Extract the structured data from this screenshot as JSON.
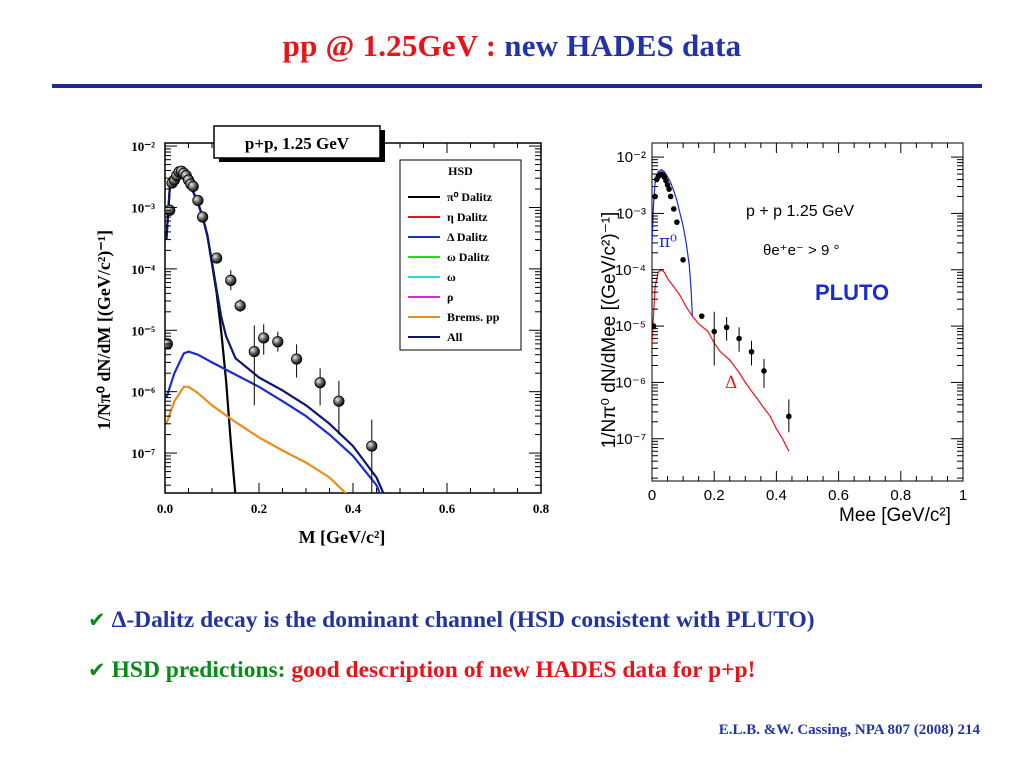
{
  "header": {
    "title_part1": "pp @ 1.25GeV : ",
    "title_part2": "new HADES data"
  },
  "bullets": [
    {
      "text": "Δ-Dalitz decay is the dominant channel (HSD consistent with PLUTO)"
    },
    {
      "prefix": "HSD predictions: ",
      "text": "good description of new HADES data for p+p!"
    }
  ],
  "reference": "E.L.B. &W. Cassing, NPA 807 (2008) 214",
  "colors": {
    "title_red": "#e8141a",
    "title_blue": "#2233aa",
    "bullet_green": "#0b8a1c",
    "rule": "#1f2a8c"
  },
  "chart_data": [
    {
      "type": "line",
      "title": "p+p, 1.25 GeV",
      "xlabel": "M  [GeV/c²]",
      "ylabel": "1/Nπ⁰ dN/dM [(GeV/c²)⁻¹]",
      "x_ticks": [
        "0.0",
        "0.2",
        "0.4",
        "0.6",
        "0.8"
      ],
      "y_ticks": [
        "10⁻²",
        "10⁻³",
        "10⁻⁴",
        "10⁻⁵",
        "10⁻⁶",
        "10⁻⁷"
      ],
      "xlim": [
        0,
        0.8
      ],
      "ylim_log10": [
        -7.65,
        -1.95
      ],
      "y_log": true,
      "legend": {
        "title": "HSD",
        "placement": "top-right",
        "entries": [
          {
            "label": "π⁰ Dalitz",
            "color": "#000000"
          },
          {
            "label": "η Dalitz",
            "color": "#e8141a"
          },
          {
            "label": "Δ Dalitz",
            "color": "#1c2bd0"
          },
          {
            "label": "ω Dalitz",
            "color": "#22dd22"
          },
          {
            "label": "ω",
            "color": "#22dddd"
          },
          {
            "label": "ρ",
            "color": "#dd22dd"
          },
          {
            "label": "Brems. pp",
            "color": "#ee8c1a"
          },
          {
            "label": "All",
            "color": "#0d1570"
          }
        ]
      },
      "series": [
        {
          "name": "π⁰ Dalitz",
          "color": "#000000",
          "x": [
            0.003,
            0.01,
            0.02,
            0.03,
            0.04,
            0.05,
            0.06,
            0.07,
            0.08,
            0.09,
            0.1,
            0.11,
            0.12,
            0.13,
            0.14,
            0.15,
            0.16
          ],
          "y": [
            0.0003,
            0.002,
            0.0035,
            0.0036,
            0.0032,
            0.0025,
            0.0018,
            0.0012,
            0.0007,
            0.00035,
            0.00012,
            4e-05,
            9e-06,
            1.5e-06,
            1.5e-07,
            2e-08,
            1e-09
          ]
        },
        {
          "name": "Δ Dalitz",
          "color": "#1c2bd0",
          "x": [
            0.003,
            0.02,
            0.04,
            0.05,
            0.07,
            0.1,
            0.15,
            0.2,
            0.25,
            0.3,
            0.35,
            0.4,
            0.45,
            0.48,
            0.5,
            0.505
          ],
          "y": [
            8e-07,
            2e-06,
            4.2e-06,
            4.5e-06,
            4e-06,
            3e-06,
            1.9e-06,
            1.2e-06,
            7e-07,
            4e-07,
            2e-07,
            9e-08,
            3e-08,
            8e-09,
            2e-09,
            1.5e-09
          ]
        },
        {
          "name": "Brems. pp",
          "color": "#ee8c1a",
          "x": [
            0.003,
            0.02,
            0.04,
            0.05,
            0.07,
            0.1,
            0.15,
            0.2,
            0.25,
            0.3,
            0.35,
            0.4,
            0.45,
            0.48,
            0.5
          ],
          "y": [
            3e-07,
            7e-07,
            1.2e-06,
            1.2e-06,
            9.5e-07,
            6e-07,
            3.2e-07,
            1.8e-07,
            1.1e-07,
            7e-08,
            4e-08,
            1.7e-08,
            5e-09,
            1.5e-09,
            5e-10
          ]
        },
        {
          "name": "All",
          "color": "#0d1570",
          "x": [
            0.003,
            0.01,
            0.02,
            0.03,
            0.04,
            0.05,
            0.06,
            0.07,
            0.08,
            0.09,
            0.1,
            0.11,
            0.12,
            0.13,
            0.15,
            0.2,
            0.25,
            0.3,
            0.35,
            0.4,
            0.45,
            0.48,
            0.5,
            0.51
          ],
          "y": [
            0.0003,
            0.002,
            0.0035,
            0.0036,
            0.0032,
            0.0025,
            0.0018,
            0.0012,
            0.0007,
            0.00036,
            0.00013,
            4.5e-05,
            1.6e-05,
            8e-06,
            3.5e-06,
            1.7e-06,
            1.05e-06,
            6e-07,
            3e-07,
            1.3e-07,
            4e-08,
            1.2e-08,
            4e-09,
            2e-09
          ]
        }
      ],
      "data_points": {
        "name": "HADES",
        "x": [
          0.005,
          0.01,
          0.015,
          0.02,
          0.025,
          0.03,
          0.035,
          0.04,
          0.045,
          0.05,
          0.055,
          0.06,
          0.07,
          0.08,
          0.11,
          0.14,
          0.16,
          0.19,
          0.21,
          0.24,
          0.28,
          0.33,
          0.37,
          0.44
        ],
        "y": [
          6e-06,
          0.0009,
          0.0025,
          0.0028,
          0.0033,
          0.0038,
          0.0039,
          0.0036,
          0.0033,
          0.0028,
          0.0024,
          0.0022,
          0.0013,
          0.0007,
          0.00015,
          6.5e-05,
          2.5e-05,
          4.5e-06,
          7.5e-06,
          6.5e-06,
          3.4e-06,
          1.4e-06,
          7e-07,
          1.3e-07
        ],
        "err_lo": [
          0,
          0,
          0,
          0,
          0,
          0,
          0,
          0,
          0,
          0,
          0,
          0,
          0,
          0,
          0,
          2e-05,
          5e-06,
          3.9e-06,
          3.5e-06,
          2e-06,
          1.7e-06,
          8e-07,
          5e-07,
          1.15e-07
        ],
        "err_hi": [
          0,
          0,
          0,
          0,
          0,
          0,
          0,
          0,
          0,
          0,
          0,
          0,
          0,
          0,
          0,
          3e-05,
          7e-06,
          7.5e-06,
          5e-06,
          3e-06,
          2.5e-06,
          1e-06,
          8e-07,
          2.2e-07
        ]
      }
    },
    {
      "type": "line",
      "title": "",
      "xlabel": "Mee [GeV/c²]",
      "ylabel": "1/Nπ⁰ dN/dMee [(GeV/c²)⁻¹]",
      "x_ticks": [
        "0",
        "0.2",
        "0.4",
        "0.6",
        "0.8",
        "1"
      ],
      "y_ticks": [
        "10⁻²",
        "10⁻³",
        "10⁻⁴",
        "10⁻⁵",
        "10⁻⁶",
        "10⁻⁷"
      ],
      "xlim": [
        0,
        1
      ],
      "ylim_log10": [
        -7.75,
        -1.75
      ],
      "y_log": true,
      "annotations": [
        "p + p  1.25 GeV",
        "θe⁺e⁻ > 9 °",
        "PLUTO",
        "π⁰",
        "Δ"
      ],
      "series": [
        {
          "name": "π⁰",
          "color": "#1c2bd0",
          "x": [
            0.0,
            0.005,
            0.01,
            0.02,
            0.03,
            0.04,
            0.05,
            0.06,
            0.07,
            0.08,
            0.09,
            0.1,
            0.11,
            0.12,
            0.125,
            0.13
          ],
          "y": [
            0.0003,
            0.0015,
            0.0035,
            0.0055,
            0.006,
            0.0055,
            0.0045,
            0.0035,
            0.0025,
            0.0017,
            0.001,
            0.0006,
            0.0003,
            0.00012,
            5e-05,
            1.5e-05
          ]
        },
        {
          "name": "Δ",
          "color": "#e8141a",
          "x": [
            0.0,
            0.01,
            0.02,
            0.03,
            0.04,
            0.05,
            0.07,
            0.09,
            0.11,
            0.13,
            0.15,
            0.18,
            0.2,
            0.22,
            0.25,
            0.28,
            0.3,
            0.32,
            0.34,
            0.36,
            0.38,
            0.4,
            0.42,
            0.44
          ],
          "y": [
            5e-06,
            5e-05,
            9e-05,
            0.0001,
            9e-05,
            7e-05,
            5e-05,
            3.5e-05,
            2.2e-05,
            1.5e-05,
            1.1e-05,
            8e-06,
            5e-06,
            3.5e-06,
            2.5e-06,
            1.5e-06,
            1e-06,
            7e-07,
            5e-07,
            3.5e-07,
            2.5e-07,
            1.5e-07,
            1e-07,
            6e-08
          ]
        }
      ],
      "data_points": {
        "x": [
          0.005,
          0.01,
          0.015,
          0.02,
          0.025,
          0.03,
          0.035,
          0.04,
          0.045,
          0.05,
          0.055,
          0.06,
          0.07,
          0.08,
          0.1,
          0.16,
          0.2,
          0.24,
          0.28,
          0.32,
          0.36,
          0.44
        ],
        "y": [
          1e-05,
          0.002,
          0.004,
          0.0045,
          0.0048,
          0.005,
          0.0048,
          0.0044,
          0.0038,
          0.0032,
          0.0027,
          0.002,
          0.0012,
          0.0007,
          0.00015,
          1.5e-05,
          8e-06,
          9.5e-06,
          6e-06,
          3.5e-06,
          1.6e-06,
          2.5e-07
        ],
        "err_lo": [
          0,
          0,
          0,
          0,
          0,
          0,
          0,
          0,
          0,
          0,
          0,
          0,
          0,
          0,
          0,
          0,
          6e-06,
          4e-06,
          2.5e-06,
          1.5e-06,
          8e-07,
          1.2e-07
        ],
        "err_hi": [
          0,
          0,
          0,
          0,
          0,
          0,
          0,
          0,
          0,
          0,
          0,
          0,
          0,
          0,
          0,
          0,
          1e-05,
          5e-06,
          3.5e-06,
          2e-06,
          1e-06,
          2.5e-07
        ]
      }
    }
  ]
}
